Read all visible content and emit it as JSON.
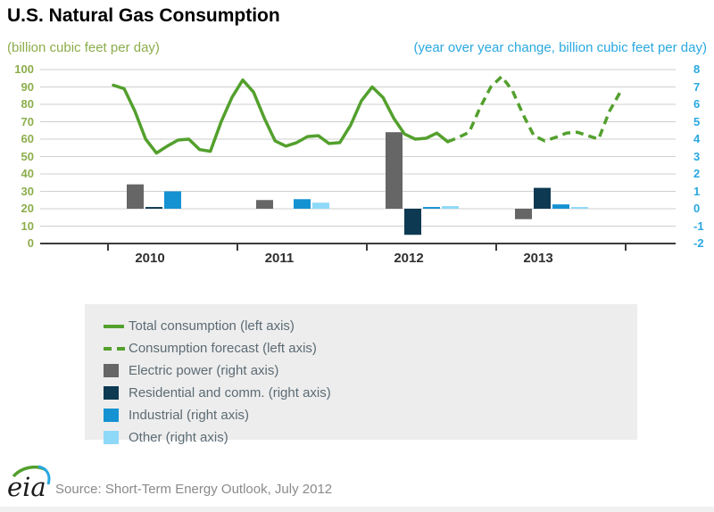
{
  "header": {
    "title": "U.S. Natural Gas Consumption"
  },
  "chart_data": {
    "type": "line+bar",
    "left_axis": {
      "title": "(billion cubic feet per day)",
      "min": 0,
      "max": 100,
      "step": 10,
      "text_color": "#8CAD4B"
    },
    "right_axis": {
      "title": "(year over year change, billion cubic feet per day)",
      "min": -2,
      "max": 8,
      "step": 1,
      "text_color": "#29A8E0"
    },
    "x_years": [
      "2010",
      "2011",
      "2012",
      "2013"
    ],
    "line_series": {
      "actual_name": "Total consumption (left axis)",
      "forecast_name": "Consumption forecast (left axis)",
      "color": "#53A02D",
      "unit": "billion cubic feet per day, monthly Jan 2010 - Dec 2013",
      "values": [
        91,
        89,
        76,
        60,
        52,
        56,
        59.5,
        60,
        54,
        53,
        70,
        84,
        94,
        87,
        72,
        59,
        56,
        58,
        61.5,
        62,
        57.5,
        58,
        68,
        82,
        90,
        84,
        72,
        63,
        60,
        60.5,
        63.5,
        58.5,
        61,
        64,
        78,
        90,
        96,
        88,
        74,
        62,
        59,
        61,
        63.5,
        64,
        62,
        60,
        76,
        87
      ],
      "forecast_start_index": 31
    },
    "bar_series": [
      {
        "name": "Electric power (right axis)",
        "color": "#666666",
        "values": [
          1.4,
          0.5,
          4.4,
          -0.6
        ]
      },
      {
        "name": "Residential and comm. (right axis)",
        "color": "#0D3A52",
        "values": [
          0.1,
          0.0,
          -1.5,
          1.2
        ]
      },
      {
        "name": "Industrial (right axis)",
        "color": "#1592D2",
        "values": [
          1.0,
          0.55,
          0.1,
          0.25
        ]
      },
      {
        "name": "Other (right axis)",
        "color": "#8FD9F8",
        "values": [
          0.0,
          0.35,
          0.15,
          0.1
        ]
      }
    ],
    "grid": "horizontal",
    "legend_position": "below"
  },
  "legend": {
    "items": [
      {
        "key": "total-consumption",
        "label": "Total consumption (left axis)",
        "swatch": "line-solid",
        "color": "#53A02D"
      },
      {
        "key": "consumption-forecast",
        "label": "Consumption forecast (left axis)",
        "swatch": "line-dashed",
        "color": "#53A02D"
      },
      {
        "key": "electric-power",
        "label": "Electric power (right axis)",
        "swatch": "square",
        "color": "#666666"
      },
      {
        "key": "residential-comm",
        "label": "Residential and comm. (right axis)",
        "swatch": "square",
        "color": "#0D3A52"
      },
      {
        "key": "industrial",
        "label": "Industrial (right axis)",
        "swatch": "square",
        "color": "#1592D2"
      },
      {
        "key": "other",
        "label": "Other (right axis)",
        "swatch": "square",
        "color": "#8FD9F8"
      }
    ]
  },
  "footer": {
    "logo_text": "eia",
    "source": "Source: Short-Term Energy Outlook, July 2012"
  }
}
